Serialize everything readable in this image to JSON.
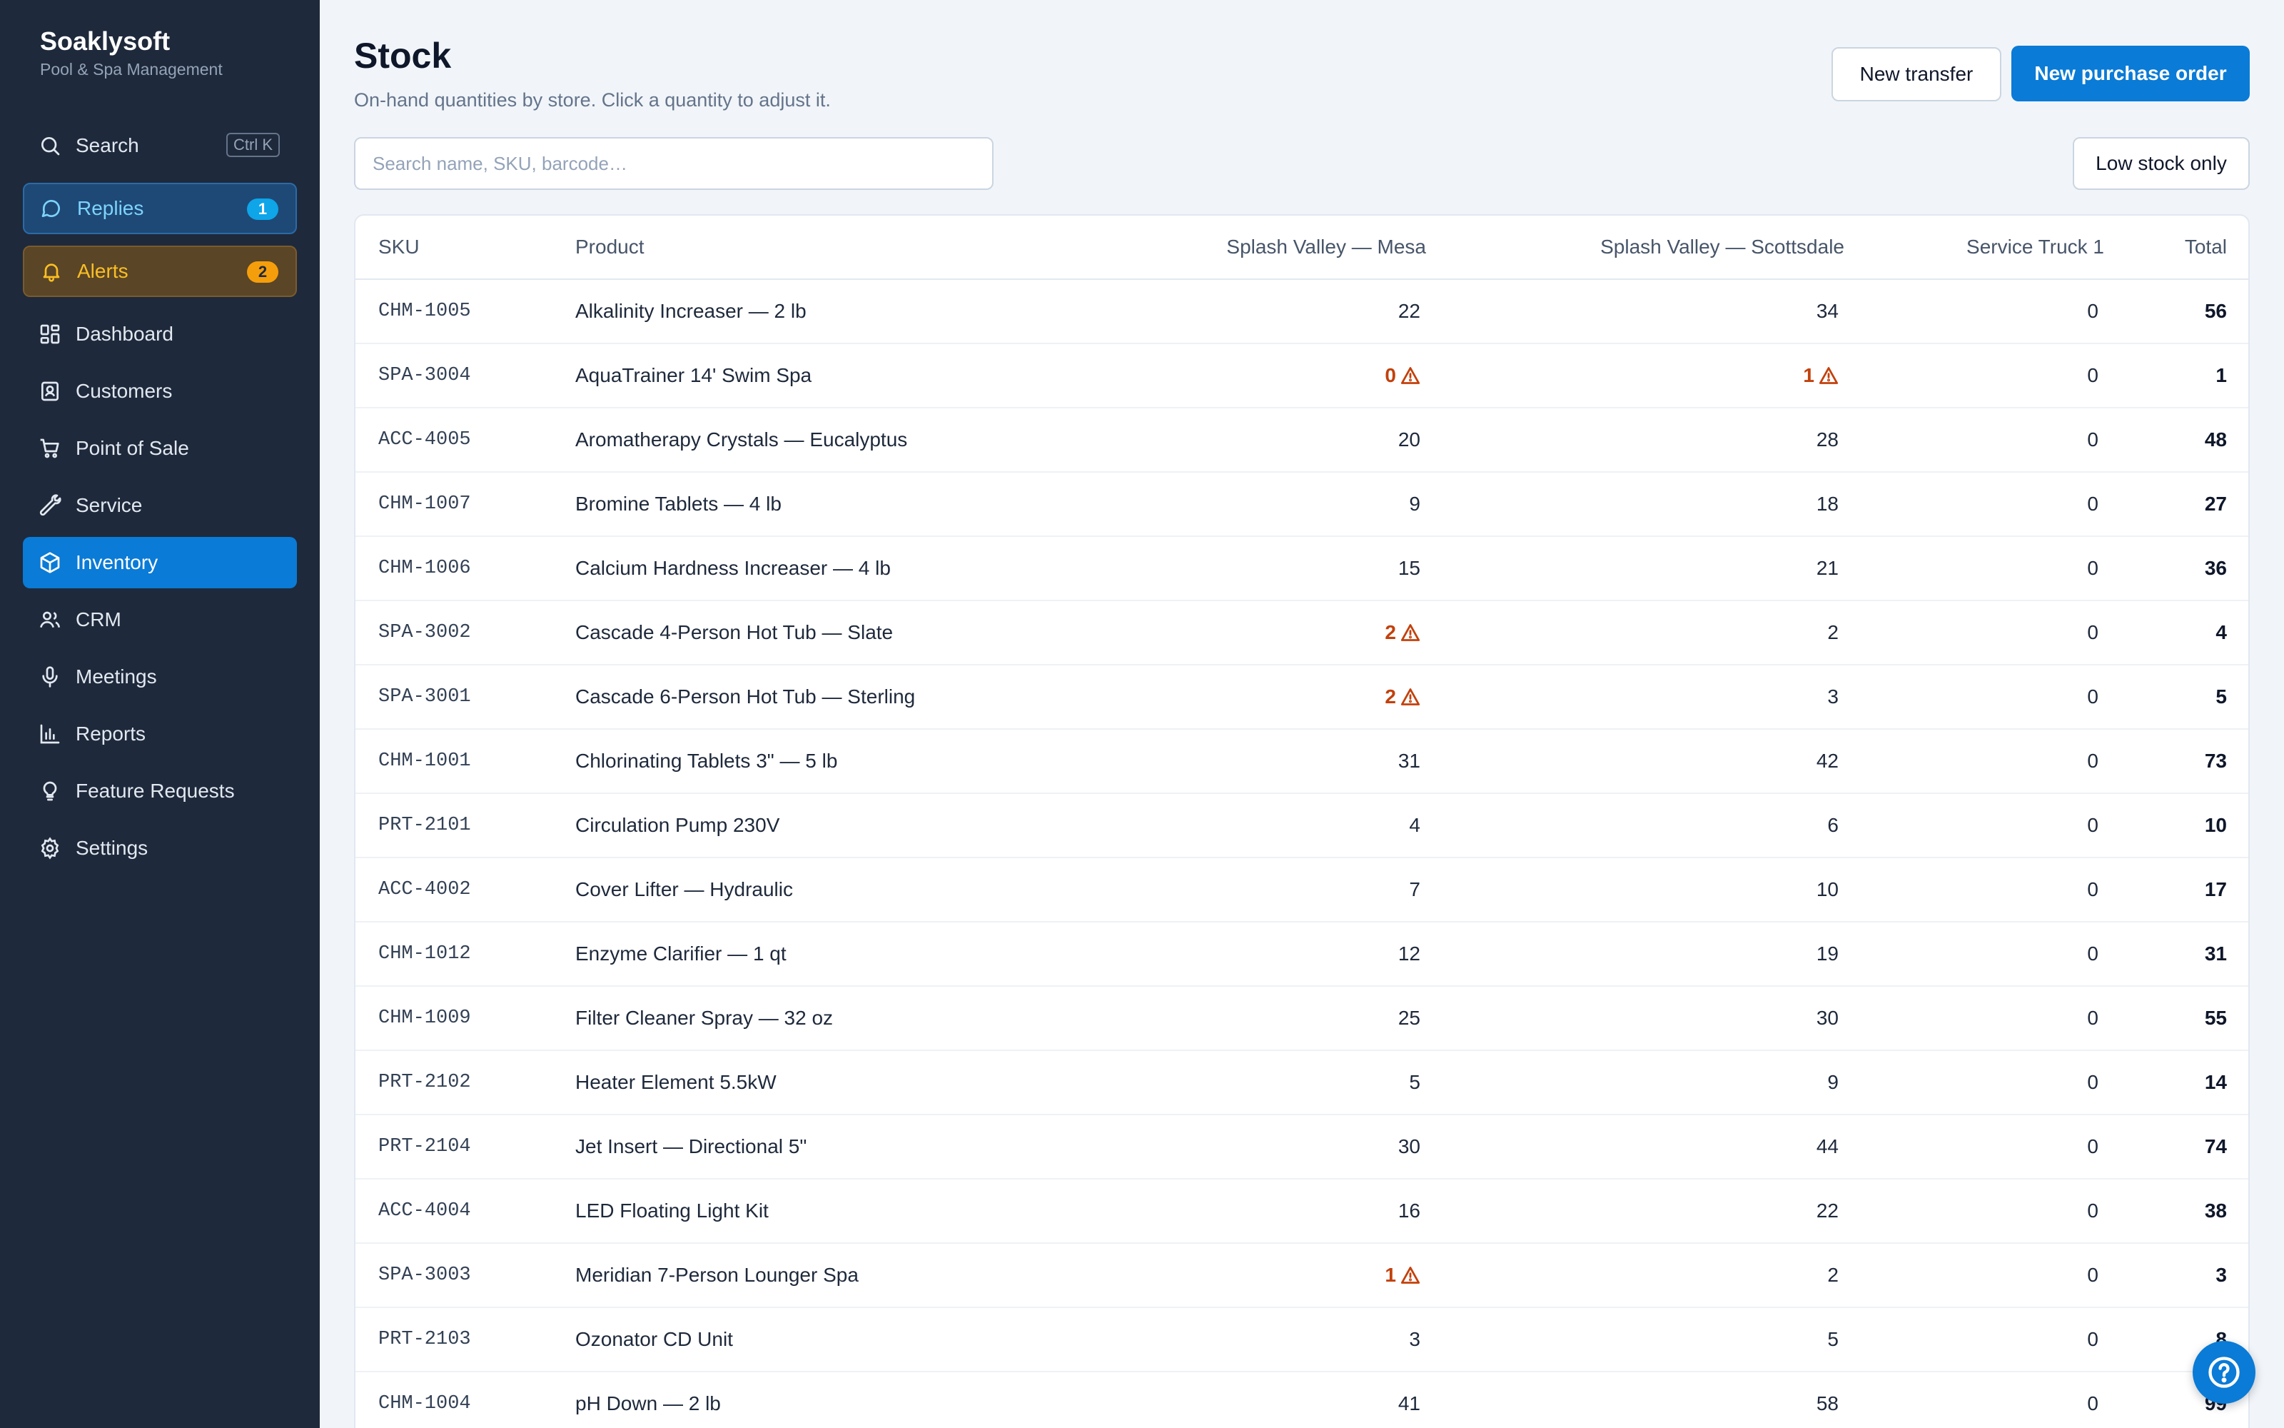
{
  "brand": {
    "name": "Soaklysoft",
    "subtitle": "Pool & Spa Management"
  },
  "sidebar": {
    "search": {
      "label": "Search",
      "shortcut": "Ctrl K",
      "icon": "search-icon"
    },
    "replies": {
      "label": "Replies",
      "count": "1",
      "icon": "chat-bubble-icon"
    },
    "alerts": {
      "label": "Alerts",
      "count": "2",
      "icon": "bell-icon"
    },
    "items": [
      {
        "label": "Dashboard",
        "icon": "dashboard-grid-icon"
      },
      {
        "label": "Customers",
        "icon": "contact-card-icon"
      },
      {
        "label": "Point of Sale",
        "icon": "cart-icon"
      },
      {
        "label": "Service",
        "icon": "wrench-icon"
      },
      {
        "label": "Inventory",
        "icon": "box-icon",
        "active": true
      },
      {
        "label": "CRM",
        "icon": "users-icon"
      },
      {
        "label": "Meetings",
        "icon": "microphone-icon"
      },
      {
        "label": "Reports",
        "icon": "bar-chart-icon"
      },
      {
        "label": "Feature Requests",
        "icon": "lightbulb-icon"
      },
      {
        "label": "Settings",
        "icon": "gear-icon"
      }
    ]
  },
  "header": {
    "title": "Stock",
    "subtitle": "On-hand quantities by store. Click a quantity to adjust it.",
    "new_transfer_label": "New transfer",
    "new_po_label": "New purchase order"
  },
  "search": {
    "placeholder": "Search name, SKU, barcode…",
    "value": ""
  },
  "filters": {
    "low_stock_label": "Low stock only"
  },
  "table": {
    "columns": {
      "sku": "SKU",
      "product": "Product",
      "mesa": "Splash Valley — Mesa",
      "scottsdale": "Splash Valley — Scottsdale",
      "truck": "Service Truck 1",
      "total": "Total"
    },
    "rows": [
      {
        "sku": "CHM-1005",
        "product": "Alkalinity Increaser — 2 lb",
        "mesa": "22",
        "mesa_low": false,
        "scottsdale": "34",
        "scottsdale_low": false,
        "truck": "0",
        "total": "56"
      },
      {
        "sku": "SPA-3004",
        "product": "AquaTrainer 14' Swim Spa",
        "mesa": "0",
        "mesa_low": true,
        "scottsdale": "1",
        "scottsdale_low": true,
        "truck": "0",
        "total": "1"
      },
      {
        "sku": "ACC-4005",
        "product": "Aromatherapy Crystals — Eucalyptus",
        "mesa": "20",
        "mesa_low": false,
        "scottsdale": "28",
        "scottsdale_low": false,
        "truck": "0",
        "total": "48"
      },
      {
        "sku": "CHM-1007",
        "product": "Bromine Tablets — 4 lb",
        "mesa": "9",
        "mesa_low": false,
        "scottsdale": "18",
        "scottsdale_low": false,
        "truck": "0",
        "total": "27"
      },
      {
        "sku": "CHM-1006",
        "product": "Calcium Hardness Increaser — 4 lb",
        "mesa": "15",
        "mesa_low": false,
        "scottsdale": "21",
        "scottsdale_low": false,
        "truck": "0",
        "total": "36"
      },
      {
        "sku": "SPA-3002",
        "product": "Cascade 4-Person Hot Tub — Slate",
        "mesa": "2",
        "mesa_low": true,
        "scottsdale": "2",
        "scottsdale_low": false,
        "truck": "0",
        "total": "4"
      },
      {
        "sku": "SPA-3001",
        "product": "Cascade 6-Person Hot Tub — Sterling",
        "mesa": "2",
        "mesa_low": true,
        "scottsdale": "3",
        "scottsdale_low": false,
        "truck": "0",
        "total": "5"
      },
      {
        "sku": "CHM-1001",
        "product": "Chlorinating Tablets 3\" — 5 lb",
        "mesa": "31",
        "mesa_low": false,
        "scottsdale": "42",
        "scottsdale_low": false,
        "truck": "0",
        "total": "73"
      },
      {
        "sku": "PRT-2101",
        "product": "Circulation Pump 230V",
        "mesa": "4",
        "mesa_low": false,
        "scottsdale": "6",
        "scottsdale_low": false,
        "truck": "0",
        "total": "10"
      },
      {
        "sku": "ACC-4002",
        "product": "Cover Lifter — Hydraulic",
        "mesa": "7",
        "mesa_low": false,
        "scottsdale": "10",
        "scottsdale_low": false,
        "truck": "0",
        "total": "17"
      },
      {
        "sku": "CHM-1012",
        "product": "Enzyme Clarifier — 1 qt",
        "mesa": "12",
        "mesa_low": false,
        "scottsdale": "19",
        "scottsdale_low": false,
        "truck": "0",
        "total": "31"
      },
      {
        "sku": "CHM-1009",
        "product": "Filter Cleaner Spray — 32 oz",
        "mesa": "25",
        "mesa_low": false,
        "scottsdale": "30",
        "scottsdale_low": false,
        "truck": "0",
        "total": "55"
      },
      {
        "sku": "PRT-2102",
        "product": "Heater Element 5.5kW",
        "mesa": "5",
        "mesa_low": false,
        "scottsdale": "9",
        "scottsdale_low": false,
        "truck": "0",
        "total": "14"
      },
      {
        "sku": "PRT-2104",
        "product": "Jet Insert — Directional 5\"",
        "mesa": "30",
        "mesa_low": false,
        "scottsdale": "44",
        "scottsdale_low": false,
        "truck": "0",
        "total": "74"
      },
      {
        "sku": "ACC-4004",
        "product": "LED Floating Light Kit",
        "mesa": "16",
        "mesa_low": false,
        "scottsdale": "22",
        "scottsdale_low": false,
        "truck": "0",
        "total": "38"
      },
      {
        "sku": "SPA-3003",
        "product": "Meridian 7-Person Lounger Spa",
        "mesa": "1",
        "mesa_low": true,
        "scottsdale": "2",
        "scottsdale_low": false,
        "truck": "0",
        "total": "3"
      },
      {
        "sku": "PRT-2103",
        "product": "Ozonator CD Unit",
        "mesa": "3",
        "mesa_low": false,
        "scottsdale": "5",
        "scottsdale_low": false,
        "truck": "0",
        "total": "8"
      },
      {
        "sku": "CHM-1004",
        "product": "pH Down — 2 lb",
        "mesa": "41",
        "mesa_low": false,
        "scottsdale": "58",
        "scottsdale_low": false,
        "truck": "0",
        "total": "99"
      }
    ]
  },
  "colors": {
    "sidebar": "#1e293b",
    "accent": "#0a7bd6",
    "warning": "#c2410c",
    "alert": "#fbbf24"
  },
  "help": {
    "icon": "help-circle-icon"
  }
}
